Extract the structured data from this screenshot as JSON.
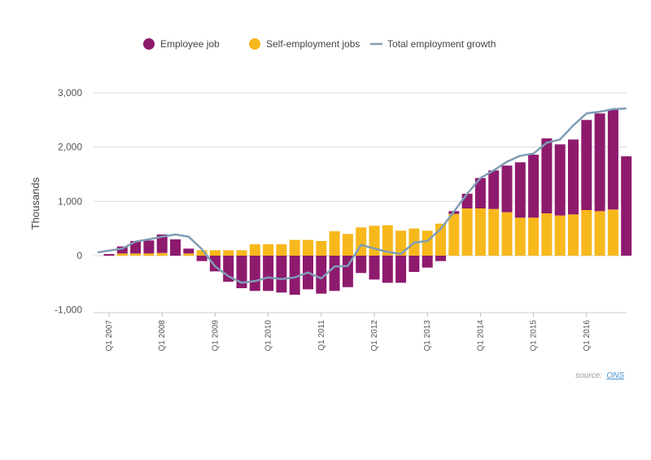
{
  "chart_data": {
    "type": "bar",
    "title": "",
    "xlabel": "",
    "ylabel": "Thousands",
    "ylim": [
      -1000,
      3000
    ],
    "yticks": [
      3000,
      2000,
      1000,
      0,
      -1000
    ],
    "ytick_labels": [
      "3,000",
      "2,000",
      "1,000",
      "0",
      "-1,000"
    ],
    "grid": true,
    "legend_position": "top",
    "x_labels": [
      {
        "index": 0,
        "label": "Q1 2007"
      },
      {
        "index": 4,
        "label": "Q1 2008"
      },
      {
        "index": 8,
        "label": "Q1 2009"
      },
      {
        "index": 12,
        "label": "Q1 2010"
      },
      {
        "index": 16,
        "label": "Q1 2011"
      },
      {
        "index": 20,
        "label": "Q1 2012"
      },
      {
        "index": 24,
        "label": "Q1 2013"
      },
      {
        "index": 28,
        "label": "Q1 2014"
      },
      {
        "index": 32,
        "label": "Q1 2015"
      },
      {
        "index": 36,
        "label": "Q1 2016"
      }
    ],
    "series": [
      {
        "name": "Employee job",
        "kind": "bar",
        "color": "#8e1a6e",
        "values": [
          30,
          130,
          230,
          240,
          340,
          300,
          90,
          -100,
          -290,
          -480,
          -600,
          -650,
          -650,
          -680,
          -720,
          -620,
          -700,
          -650,
          -580,
          -320,
          -440,
          -500,
          -500,
          -300,
          -220,
          -100,
          50,
          270,
          560,
          710,
          860,
          1020,
          1160,
          1380,
          1310,
          1380,
          1660,
          1800,
          1850,
          1830
        ]
      },
      {
        "name": "Self-employment jobs",
        "kind": "bar",
        "color": "#f7b81c",
        "values": [
          0,
          40,
          40,
          40,
          50,
          0,
          40,
          100,
          100,
          100,
          100,
          210,
          210,
          210,
          290,
          290,
          270,
          450,
          400,
          520,
          550,
          560,
          460,
          500,
          460,
          590,
          770,
          870,
          870,
          860,
          800,
          700,
          700,
          780,
          740,
          760,
          840,
          820,
          850,
          0
        ]
      },
      {
        "name": "Total employment growth",
        "kind": "line",
        "color": "#7f9cb4",
        "values": [
          60,
          130,
          260,
          300,
          350,
          390,
          350,
          120,
          -200,
          -380,
          -500,
          -470,
          -400,
          -430,
          -400,
          -310,
          -420,
          -200,
          -190,
          200,
          130,
          70,
          30,
          240,
          270,
          490,
          810,
          1140,
          1430,
          1570,
          1730,
          1840,
          1880,
          2080,
          2140,
          2400,
          2620,
          2650,
          2700,
          2710
        ]
      }
    ]
  },
  "legend": {
    "employee": "Employee job",
    "self_employment": "Self-employment jobs",
    "total": "Total employment growth"
  },
  "source": {
    "prefix": "source: ",
    "link_text": "ONS"
  }
}
